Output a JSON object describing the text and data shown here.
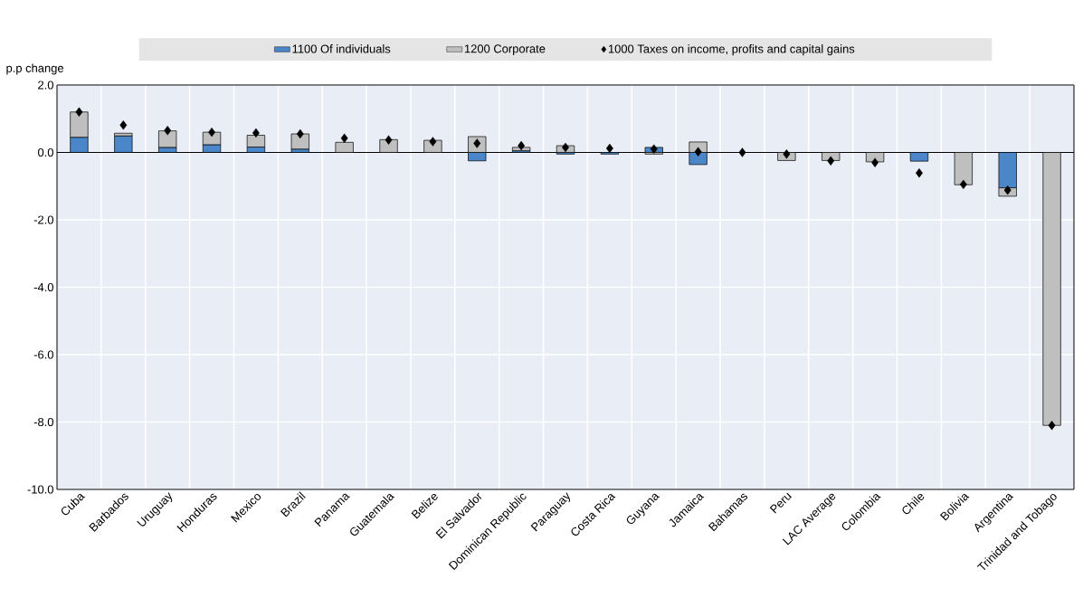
{
  "chart_data": {
    "type": "bar",
    "stacked": true,
    "ylabel": "p.p change",
    "legend": "top",
    "grid": true,
    "categories": [
      "Cuba",
      "Barbados",
      "Uruguay",
      "Honduras",
      "Mexico",
      "Brazil",
      "Panama",
      "Guatemala",
      "Belize",
      "El Salvador",
      "Dominican Republic",
      "Paraguay",
      "Costa Rica",
      "Guyana",
      "Jamaica",
      "Bahamas",
      "Peru",
      "LAC Average",
      "Colombia",
      "Chile",
      "Bolivia",
      "Argentina",
      "Trinidad and Tobago"
    ],
    "ylim": [
      -10,
      2
    ],
    "yticks": [
      {
        "value": -10,
        "label": "-10.0"
      },
      {
        "value": -8,
        "label": "-8.0"
      },
      {
        "value": -6,
        "label": "-6.0"
      },
      {
        "value": -4,
        "label": "-4.0"
      },
      {
        "value": -2,
        "label": "-2.0"
      },
      {
        "value": 0,
        "label": "0.0"
      },
      {
        "value": 2,
        "label": "2.0"
      }
    ],
    "series": [
      {
        "name": "1100 Of individuals",
        "color": "#4a86c8",
        "values": [
          0.45,
          0.49,
          0.15,
          0.23,
          0.16,
          0.1,
          null,
          null,
          null,
          -0.25,
          0.05,
          -0.05,
          -0.05,
          0.15,
          -0.36,
          null,
          null,
          null,
          null,
          -0.26,
          null,
          -1.05,
          null
        ]
      },
      {
        "name": "1200 Corporate",
        "color": "#bfbfbf",
        "values": [
          0.75,
          0.08,
          0.49,
          0.37,
          0.35,
          0.45,
          0.3,
          0.38,
          0.36,
          0.47,
          0.1,
          0.2,
          null,
          -0.05,
          0.31,
          null,
          -0.24,
          -0.24,
          -0.28,
          null,
          -0.96,
          -0.25,
          -8.1
        ]
      },
      {
        "name": "1000 Taxes on income, profits and capital gains",
        "type": "scatter",
        "marker": "diamond",
        "color": "#000000",
        "values": [
          1.2,
          0.81,
          0.65,
          0.6,
          0.58,
          0.55,
          0.42,
          0.37,
          0.32,
          0.27,
          0.2,
          0.15,
          0.12,
          0.1,
          0.02,
          0,
          -0.05,
          -0.25,
          -0.3,
          -0.61,
          -0.95,
          -1.12,
          -8.1
        ]
      }
    ]
  }
}
